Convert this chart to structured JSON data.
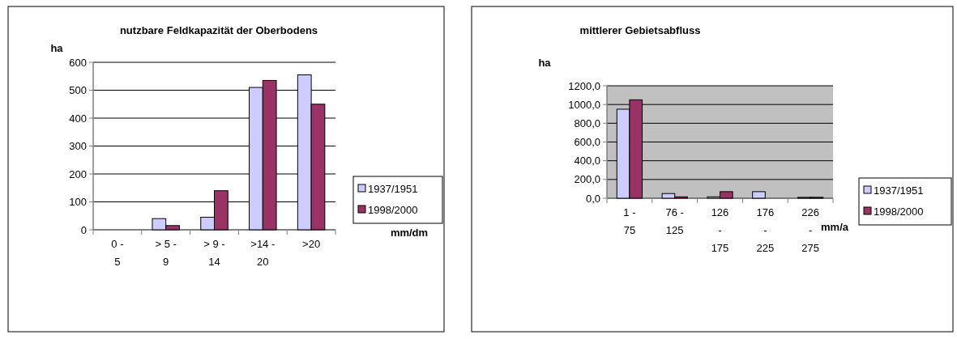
{
  "chart_data": [
    {
      "type": "bar",
      "title": "nutzbare Feldkapazität der Oberbodens",
      "ylabel": "ha",
      "xlabel": "mm/dm",
      "categories": [
        "0 - 5",
        "> 5 - 9",
        "> 9 - 14",
        ">14 - 20",
        ">20"
      ],
      "series": [
        {
          "name": "1937/1951",
          "color": "#ccccff",
          "values": [
            0,
            40,
            45,
            510,
            555
          ]
        },
        {
          "name": "1998/2000",
          "color": "#993366",
          "values": [
            0,
            15,
            140,
            535,
            450
          ]
        }
      ],
      "ylim": [
        0,
        600
      ],
      "yticks": [
        0,
        100,
        200,
        300,
        400,
        500,
        600
      ],
      "grid": "y",
      "legend": "right"
    },
    {
      "type": "bar",
      "title": "mittlerer Gebietsabfluss",
      "ylabel": "ha",
      "xlabel": "mm/a",
      "categories": [
        "1 - 75",
        "76 - 125",
        "126 - 175",
        "176 - 225",
        "226 - 275"
      ],
      "series": [
        {
          "name": "1937/1951",
          "color": "#ccccff",
          "values": [
            950,
            50,
            15,
            70,
            10
          ]
        },
        {
          "name": "1998/2000",
          "color": "#993366",
          "values": [
            1050,
            15,
            70,
            0,
            10
          ]
        }
      ],
      "ylim": [
        0,
        1200
      ],
      "yticks": [
        {
          "value": 0,
          "label": "0,0"
        },
        {
          "value": 200,
          "label": "200,0"
        },
        {
          "value": 400,
          "label": "400,0"
        },
        {
          "value": 600,
          "label": "600,0"
        },
        {
          "value": 800,
          "label": "800,0"
        },
        {
          "value": 1000,
          "label": "1000,0"
        },
        {
          "value": 1200,
          "label": "1200,0"
        }
      ],
      "grid": "y",
      "legend": "right"
    }
  ]
}
